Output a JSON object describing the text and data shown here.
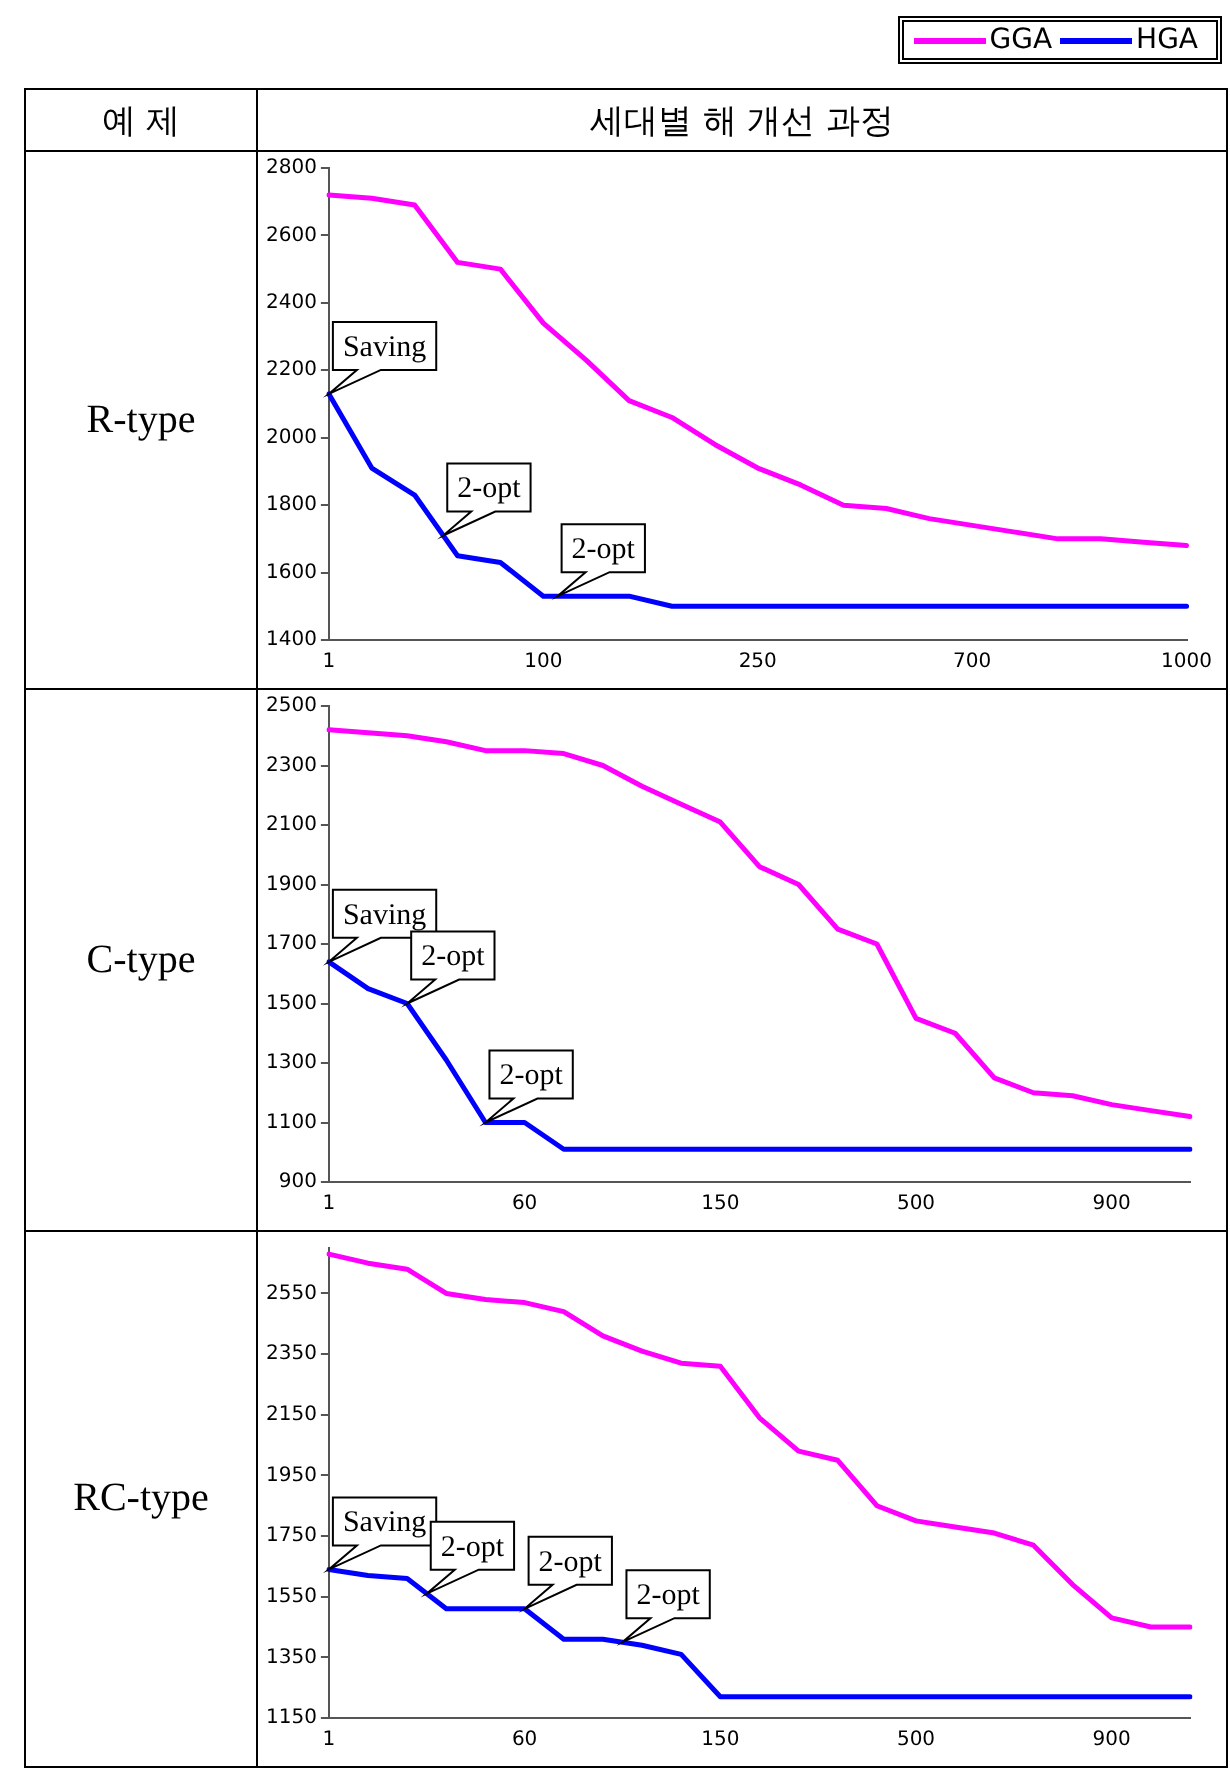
{
  "chart_data": [
    {
      "type": "other",
      "annotations": [
        "예 제",
        "세대별 해 개선 과정"
      ]
    },
    {
      "type": "line",
      "title": "R-type",
      "legend": "top right",
      "grid": false,
      "marker": "none",
      "line_style": "solid",
      "annotations": [
        "Saving",
        "2-opt",
        "2-opt"
      ],
      "categories": [
        "1",
        null,
        null,
        null,
        null,
        "100",
        null,
        null,
        null,
        null,
        "250",
        null,
        null,
        null,
        null,
        "700",
        null,
        null,
        null,
        null,
        "1000"
      ],
      "ylim": [
        1400,
        2800
      ],
      "yticks": [
        1400,
        1600,
        1800,
        2000,
        2200,
        2400,
        2600,
        2800
      ],
      "series": [
        {
          "name": "GGA",
          "color": "#ff00ff",
          "values": [
            2720,
            2710,
            2690,
            2520,
            2500,
            2340,
            2230,
            2110,
            2060,
            1980,
            1910,
            1860,
            1800,
            1790,
            1760,
            1740,
            1720,
            1700,
            1700,
            1690,
            1680
          ]
        },
        {
          "name": "HGA",
          "color": "#0000ff",
          "values": [
            2130,
            1910,
            1830,
            1650,
            1630,
            1530,
            1530,
            1530,
            1500,
            1500,
            1500,
            1500,
            1500,
            1500,
            1500,
            1500,
            1500,
            1500,
            1500,
            1500,
            1500
          ]
        }
      ]
    },
    {
      "type": "line",
      "title": "C-type",
      "grid": false,
      "marker": "none",
      "line_style": "solid",
      "annotations": [
        "Saving",
        "2-opt",
        "2-opt"
      ],
      "categories": [
        "1",
        null,
        null,
        null,
        null,
        "60",
        null,
        null,
        null,
        null,
        "150",
        null,
        null,
        null,
        null,
        "500",
        null,
        null,
        null,
        null,
        "900",
        null,
        null
      ],
      "ylim": [
        900,
        2500
      ],
      "yticks": [
        900,
        1100,
        1300,
        1500,
        1700,
        1900,
        2100,
        2300,
        2500
      ],
      "series": [
        {
          "color": "#ff00ff",
          "values": [
            2420,
            2410,
            2400,
            2380,
            2350,
            2350,
            2340,
            2300,
            2230,
            2170,
            2110,
            1960,
            1900,
            1750,
            1700,
            1450,
            1400,
            1250,
            1200,
            1190,
            1160,
            1140,
            1120
          ]
        },
        {
          "color": "#0000ff",
          "values": [
            1640,
            1550,
            1500,
            1310,
            1100,
            1100,
            1010,
            1010,
            1010,
            1010,
            1010,
            1010,
            1010,
            1010,
            1010,
            1010,
            1010,
            1010,
            1010,
            1010,
            1010,
            1010,
            1010
          ]
        }
      ]
    },
    {
      "type": "line",
      "title": "RC-type",
      "grid": false,
      "marker": "none",
      "line_style": "solid",
      "annotations": [
        "Saving",
        "2-opt",
        "2-opt",
        "2-opt"
      ],
      "categories": [
        "1",
        null,
        null,
        null,
        null,
        "60",
        null,
        null,
        null,
        null,
        "150",
        null,
        null,
        null,
        null,
        "500",
        null,
        null,
        null,
        null,
        "900",
        null,
        null
      ],
      "ylim": [
        1150,
        2700
      ],
      "yticks": [
        1150,
        1350,
        1550,
        1750,
        1950,
        2150,
        2350,
        2550
      ],
      "series": [
        {
          "color": "#ff00ff",
          "values": [
            2680,
            2650,
            2630,
            2550,
            2530,
            2520,
            2490,
            2410,
            2360,
            2320,
            2310,
            2140,
            2030,
            2000,
            1850,
            1800,
            1780,
            1760,
            1720,
            1590,
            1480,
            1450,
            1450
          ]
        },
        {
          "color": "#0000ff",
          "values": [
            1640,
            1620,
            1610,
            1510,
            1510,
            1510,
            1410,
            1410,
            1390,
            1360,
            1220,
            1220,
            1220,
            1220,
            1220,
            1220,
            1220,
            1220,
            1220,
            1220,
            1220,
            1220,
            1220
          ]
        }
      ]
    }
  ]
}
